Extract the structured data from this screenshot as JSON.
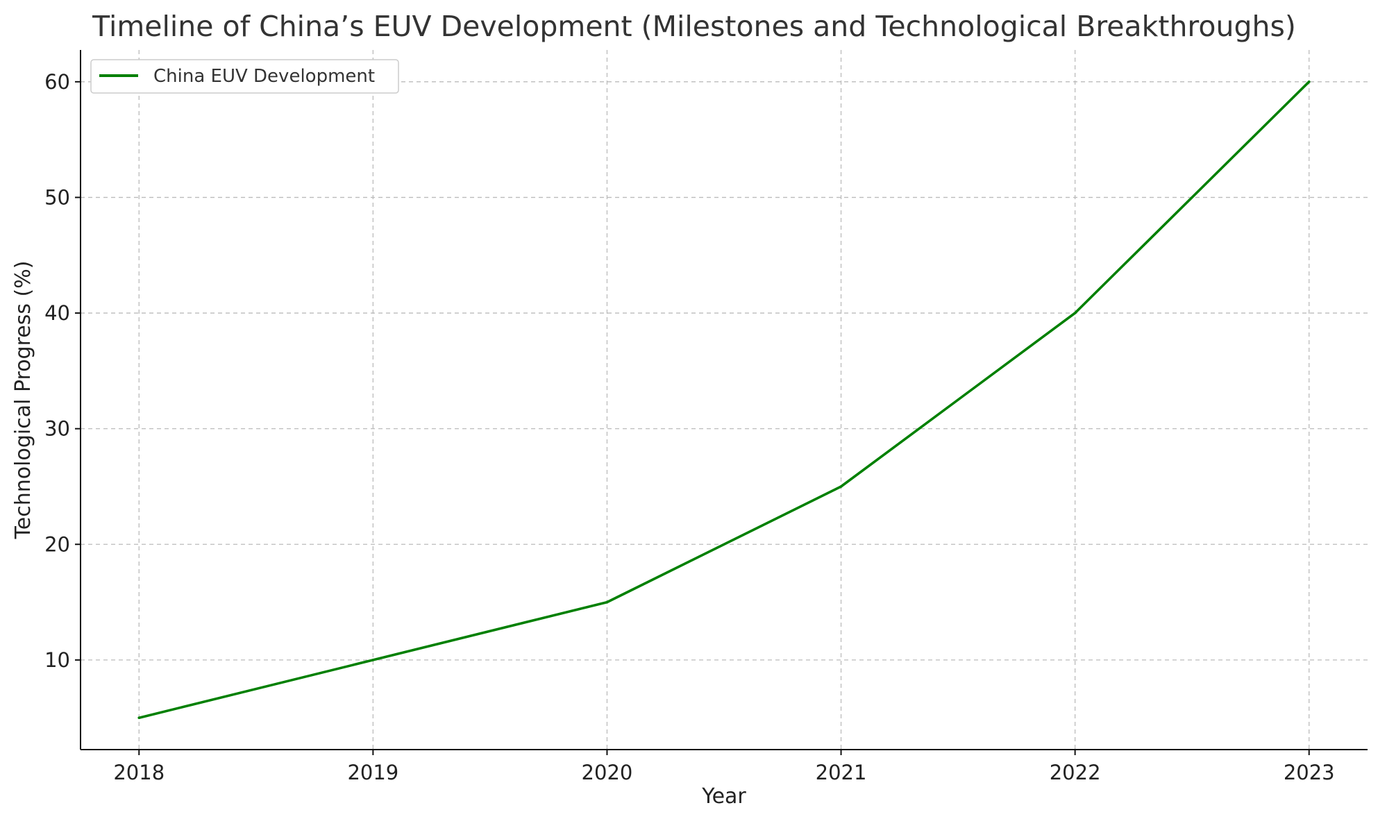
{
  "chart_data": {
    "type": "line",
    "title": "Timeline of China’s EUV Development (Milestones and Technological Breakthroughs)",
    "xlabel": "Year",
    "ylabel": "Technological Progress (%)",
    "x": [
      2018,
      2019,
      2020,
      2021,
      2022,
      2023
    ],
    "x_tick_labels": [
      "2018",
      "2019",
      "2020",
      "2021",
      "2022",
      "2023"
    ],
    "xlim": [
      2017.75,
      2023.25
    ],
    "y_ticks": [
      10,
      20,
      30,
      40,
      50,
      60
    ],
    "y_tick_labels": [
      "10",
      "20",
      "30",
      "40",
      "50",
      "60"
    ],
    "ylim": [
      2.25,
      62.75
    ],
    "series": [
      {
        "name": "China EUV Development",
        "values": [
          5,
          10,
          15,
          25,
          40,
          60
        ],
        "color": "#008000"
      }
    ],
    "grid": true,
    "legend_position": "top-left"
  }
}
